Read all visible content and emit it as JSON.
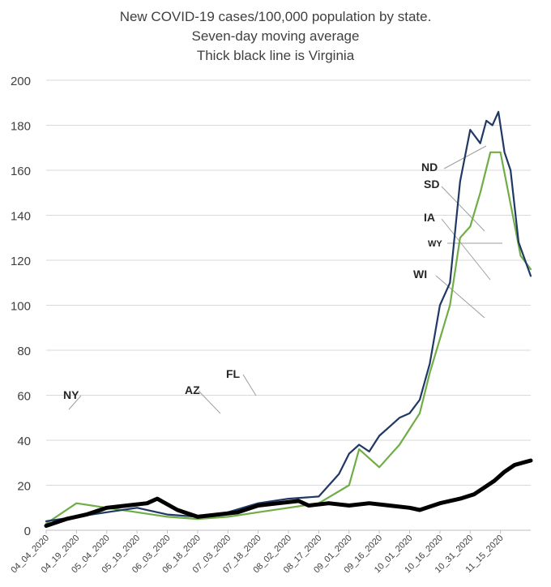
{
  "chart_data": {
    "type": "line",
    "title_lines": [
      "New COVID-19 cases/100,000 population by state.",
      "Seven-day moving average",
      "Thick black line is Virginia"
    ],
    "xlabel": "",
    "ylabel": "",
    "ylim": [
      0,
      200
    ],
    "y_ticks": [
      0,
      20,
      40,
      60,
      80,
      100,
      120,
      140,
      160,
      180,
      200
    ],
    "grid": "horizontal",
    "x_start": "04_04_2020",
    "x_end": "11_30_2020",
    "x_tick_labels": [
      "04_04_2020",
      "04_19_2020",
      "05_04_2020",
      "05_19_2020",
      "06_03_2020",
      "06_18_2020",
      "07_03_2020",
      "07_18_2020",
      "08_02_2020",
      "08_17_2020",
      "09_01_2020",
      "09_16_2020",
      "10_01_2020",
      "10_16_2020",
      "10_31_2020",
      "11_15_2020"
    ],
    "annotations": [
      {
        "label": "NY",
        "x": "04_16_2020",
        "y": 48
      },
      {
        "label": "AZ",
        "x": "06_22_2020",
        "y": 58
      },
      {
        "label": "FL",
        "x": "07_11_2020",
        "y": 61
      },
      {
        "label": "ND",
        "x": "10_13_2020",
        "y": 162
      },
      {
        "label": "SD",
        "x": "10_13_2020",
        "y": 151
      },
      {
        "label": "IA",
        "x": "10_13_2020",
        "y": 137
      },
      {
        "label": "WY",
        "x": "10_16_2020",
        "y": 126
      },
      {
        "label": "WI",
        "x": "10_09_2020",
        "y": 112
      }
    ],
    "highlight_series": [
      {
        "name": "VA",
        "color": "#000000",
        "points": [
          [
            "04_04_2020",
            2
          ],
          [
            "04_14_2020",
            5
          ],
          [
            "04_24_2020",
            7
          ],
          [
            "05_04_2020",
            10
          ],
          [
            "05_14_2020",
            11
          ],
          [
            "05_24_2020",
            12
          ],
          [
            "05_29_2020",
            14
          ],
          [
            "06_08_2020",
            9
          ],
          [
            "06_18_2020",
            6
          ],
          [
            "06_28_2020",
            7
          ],
          [
            "07_08_2020",
            8
          ],
          [
            "07_18_2020",
            11
          ],
          [
            "07_28_2020",
            12
          ],
          [
            "08_07_2020",
            13
          ],
          [
            "08_12_2020",
            11
          ],
          [
            "08_22_2020",
            12
          ],
          [
            "09_01_2020",
            11
          ],
          [
            "09_11_2020",
            12
          ],
          [
            "09_21_2020",
            11
          ],
          [
            "10_01_2020",
            10
          ],
          [
            "10_06_2020",
            9
          ],
          [
            "10_16_2020",
            12
          ],
          [
            "10_26_2020",
            14
          ],
          [
            "11_02_2020",
            16
          ],
          [
            "11_07_2020",
            19
          ],
          [
            "11_12_2020",
            22
          ],
          [
            "11_17_2020",
            26
          ],
          [
            "11_22_2020",
            29
          ],
          [
            "11_30_2020",
            31
          ]
        ]
      },
      {
        "name": "ND",
        "color": "#1f3864",
        "points": [
          [
            "04_04_2020",
            4
          ],
          [
            "04_19_2020",
            6
          ],
          [
            "05_04_2020",
            8
          ],
          [
            "05_19_2020",
            10
          ],
          [
            "06_03_2020",
            7
          ],
          [
            "06_18_2020",
            6
          ],
          [
            "07_03_2020",
            8
          ],
          [
            "07_18_2020",
            12
          ],
          [
            "08_02_2020",
            14
          ],
          [
            "08_17_2020",
            15
          ],
          [
            "08_27_2020",
            25
          ],
          [
            "09_01_2020",
            34
          ],
          [
            "09_06_2020",
            38
          ],
          [
            "09_11_2020",
            35
          ],
          [
            "09_16_2020",
            42
          ],
          [
            "09_21_2020",
            46
          ],
          [
            "09_26_2020",
            50
          ],
          [
            "10_01_2020",
            52
          ],
          [
            "10_06_2020",
            58
          ],
          [
            "10_11_2020",
            74
          ],
          [
            "10_16_2020",
            100
          ],
          [
            "10_21_2020",
            110
          ],
          [
            "10_26_2020",
            155
          ],
          [
            "10_31_2020",
            178
          ],
          [
            "11_05_2020",
            172
          ],
          [
            "11_08_2020",
            182
          ],
          [
            "11_11_2020",
            180
          ],
          [
            "11_14_2020",
            186
          ],
          [
            "11_17_2020",
            168
          ],
          [
            "11_20_2020",
            160
          ],
          [
            "11_24_2020",
            128
          ],
          [
            "11_30_2020",
            113
          ]
        ]
      },
      {
        "name": "SD",
        "color": "#70ad47",
        "points": [
          [
            "04_04_2020",
            3
          ],
          [
            "04_19_2020",
            12
          ],
          [
            "05_04_2020",
            10
          ],
          [
            "05_19_2020",
            8
          ],
          [
            "06_03_2020",
            6
          ],
          [
            "06_18_2020",
            5
          ],
          [
            "07_03_2020",
            6
          ],
          [
            "07_18_2020",
            8
          ],
          [
            "08_02_2020",
            10
          ],
          [
            "08_17_2020",
            12
          ],
          [
            "09_01_2020",
            20
          ],
          [
            "09_06_2020",
            36
          ],
          [
            "09_16_2020",
            28
          ],
          [
            "09_26_2020",
            38
          ],
          [
            "10_01_2020",
            45
          ],
          [
            "10_06_2020",
            52
          ],
          [
            "10_11_2020",
            70
          ],
          [
            "10_16_2020",
            85
          ],
          [
            "10_21_2020",
            100
          ],
          [
            "10_26_2020",
            130
          ],
          [
            "10_31_2020",
            135
          ],
          [
            "11_05_2020",
            150
          ],
          [
            "11_10_2020",
            168
          ],
          [
            "11_15_2020",
            168
          ],
          [
            "11_20_2020",
            145
          ],
          [
            "11_25_2020",
            122
          ],
          [
            "11_30_2020",
            116
          ]
        ]
      }
    ]
  }
}
